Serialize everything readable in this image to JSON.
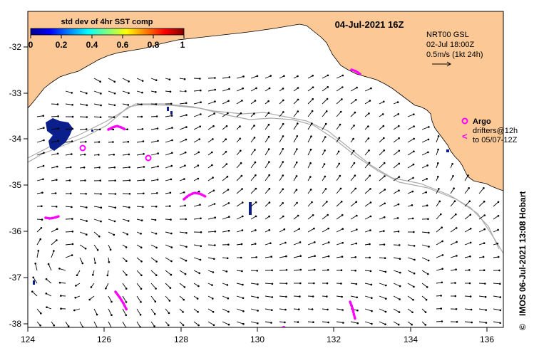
{
  "map": {
    "date_title": "04-Jul-2021 16Z",
    "colorbar": {
      "title": "std dev of 4hr SST comp",
      "ticks": [
        "0",
        "0.2",
        "0.4",
        "0.6",
        "0.8",
        "1"
      ]
    },
    "info_box": {
      "line1": "NRT00 GSL",
      "line2": "02-Jul 18:00Z",
      "line3": "0.5m/s (1kt 24h)"
    },
    "legend": {
      "argo_label": "Argo",
      "drifters_line1": "drifters@12h",
      "drifters_line2": "to 05/07-12Z"
    },
    "credit": "IMOS 06-Jul-2021 13:08 Hobart",
    "copyright": "©",
    "x_axis_ticks": [
      "124",
      "126",
      "128",
      "130",
      "132",
      "134",
      "136"
    ],
    "y_axis_ticks": [
      "-32",
      "-33",
      "-34",
      "-35",
      "-36",
      "-37",
      "-38"
    ],
    "colors": {
      "land": "#FBC896",
      "argo": "#FF00FF",
      "drifter": "#FF00FF",
      "sst_patch": "#0A1E8C",
      "isobath": "#AAAAAA"
    }
  }
}
